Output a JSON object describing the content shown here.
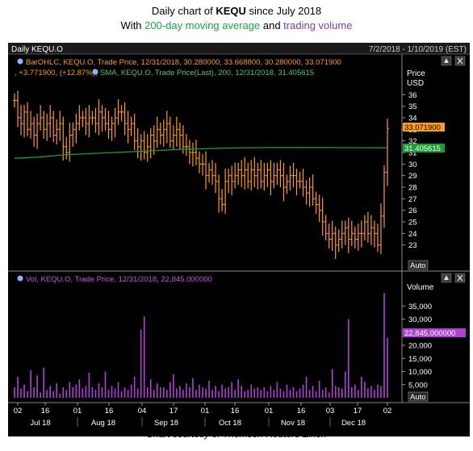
{
  "header": {
    "title_prefix": "Daily chart of ",
    "ticker": "KEQU",
    "title_suffix": " since July 2018",
    "subtitle_prefix": "With ",
    "sma_text": "200-day moving average",
    "subtitle_and": " and ",
    "volume_text": "trading volume"
  },
  "panel": {
    "name": "Daily KEQU.O",
    "date_range": "7/2/2018 - 1/10/2019 (EST)",
    "price_legend_line1": "BarOHLC, KEQU.O, Trade Price, 12/31/2018, 30.280000, 33.668800, 30.280000, 33.071900",
    "price_legend_change": ", +3.771900, (+12.87%),",
    "price_legend_sma": "SMA, KEQU.O, Trade Price(Last),  200,  12/31/2018, 31.405615",
    "volume_legend": "Vol, KEQU.O, Trade Price,  12/31/2018, 22,845.000000",
    "price_axis_title": "Price",
    "price_axis_unit": "USD",
    "volume_axis_title": "Volume",
    "auto_label": "Auto",
    "last_price_label": "33.071900",
    "sma_label": "31.405615",
    "last_volume_label": "22,845.000000"
  },
  "colors": {
    "price_bars": "#ff9c1a",
    "sma": "#1e9b32",
    "volume": "#b040d8",
    "background": "#000000",
    "axis_text": "#ffffff"
  },
  "chart_data": [
    {
      "type": "bar",
      "subtype": "ohlc",
      "title": "Daily KEQU.O",
      "x_ticks": [
        "02",
        "16",
        "01",
        "16",
        "04",
        "17",
        "01",
        "16",
        "01",
        "16",
        "03",
        "17",
        "02"
      ],
      "x_month_labels": [
        "Jul 18",
        "Aug 18",
        "Sep 18",
        "Oct 18",
        "Nov 18",
        "Dec 18"
      ],
      "y_ticks": [
        36,
        35,
        34,
        33,
        32,
        31,
        30,
        29,
        28,
        27,
        26,
        25,
        24,
        23
      ],
      "ylim": [
        22,
        37
      ],
      "close_series": [
        35.5,
        34,
        33.5,
        34.5,
        33,
        33.5,
        32.5,
        33.5,
        34,
        33,
        33.5,
        34,
        32.5,
        33,
        33.5,
        31.5,
        31,
        32.5,
        33,
        33.5,
        34,
        34,
        33.5,
        34,
        34,
        33.5,
        34.5,
        34,
        33.5,
        33,
        33.5,
        34,
        34.5,
        34.5,
        33.5,
        33,
        33.5,
        32,
        31.5,
        32,
        31,
        31.5,
        32.5,
        32,
        33,
        32.5,
        33,
        33.5,
        32,
        32.5,
        33,
        32.5,
        31.5,
        31.5,
        31,
        31,
        30.5,
        30,
        30,
        29,
        29.5,
        29,
        28.5,
        27,
        26.5,
        28.5,
        29,
        28.5,
        29,
        29.5,
        29,
        29.5,
        28.5,
        29.5,
        29,
        29.5,
        28.5,
        29,
        29.5,
        28.5,
        29,
        29.5,
        29,
        28,
        28.5,
        29,
        29,
        28.5,
        28.5,
        28,
        27.5,
        28,
        27,
        26.5,
        26,
        25,
        24,
        23.5,
        24,
        23,
        23.5,
        24,
        24.5,
        23.5,
        24,
        23.5,
        24,
        24,
        25,
        24,
        24.5,
        24,
        23,
        25.5,
        29.3,
        33.07
      ],
      "sma_200": {
        "name": "SMA 200",
        "values": [
          30.5,
          30.6,
          30.8,
          30.9,
          31.0,
          31.1,
          31.2,
          31.3,
          31.35,
          31.4,
          31.42,
          31.43,
          31.43,
          31.42,
          31.41,
          31.405615
        ]
      }
    },
    {
      "type": "bar",
      "title": "Vol, KEQU.O",
      "y_ticks": [
        "35,000",
        "30,000",
        "25,000",
        "20,000",
        "15,000",
        "10,000",
        "5,000"
      ],
      "ylim": [
        0,
        40000
      ],
      "values": [
        4000,
        8000,
        3500,
        5000,
        2500,
        10500,
        4000,
        8500,
        2000,
        11500,
        3000,
        4500,
        2500,
        5500,
        1500,
        4000,
        3000,
        6000,
        4000,
        5000,
        7000,
        3500,
        4500,
        9500,
        4000,
        3000,
        5500,
        4000,
        10000,
        3000,
        4500,
        3500,
        6000,
        2500,
        4000,
        3000,
        5000,
        8000,
        3500,
        26000,
        31000,
        4000,
        7000,
        3000,
        5500,
        4000,
        4000,
        3000,
        6000,
        9000,
        3500,
        4500,
        3000,
        5500,
        4000,
        7500,
        3000,
        5000,
        4000,
        3500,
        6500,
        3000,
        4500,
        2500,
        5000,
        3500,
        4000,
        6000,
        3000,
        7000,
        4500,
        2500,
        3000,
        5000,
        3500,
        4000,
        3000,
        4000,
        2500,
        4500,
        3000,
        6000,
        3500,
        2500,
        5000,
        3000,
        4000,
        2500,
        3500,
        5000,
        8000,
        3000,
        4500,
        2500,
        6500,
        3000,
        4000,
        2000,
        11000,
        4500,
        4000,
        3500,
        10000,
        30000,
        4000,
        5000,
        3000,
        8000,
        6000,
        3500,
        4500,
        3000,
        5000,
        4500,
        40000,
        22845
      ]
    }
  ],
  "caption": "Chart courtesy of Thomson Reuters Eikon"
}
